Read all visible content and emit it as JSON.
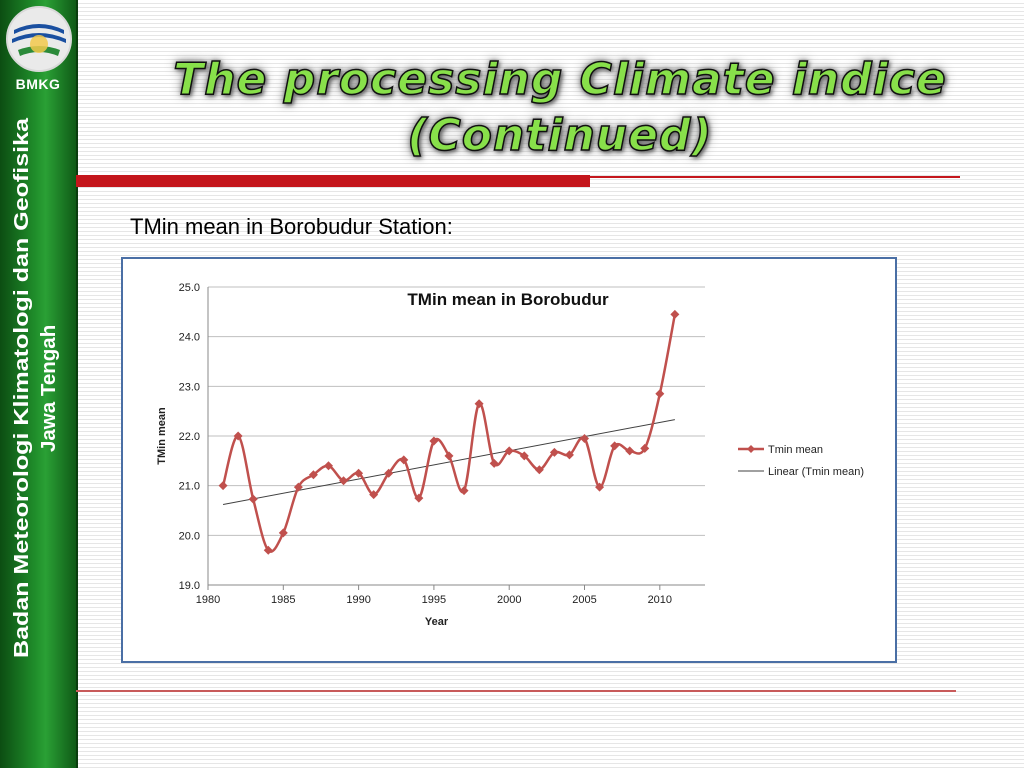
{
  "sidebar": {
    "brand": "BMKG",
    "org_line1": "Badan Meteorologi Klimatologi dan Geofisika",
    "org_line2": "Jawa Tengah",
    "logo_icon": "bmkg-globe-logo-icon"
  },
  "slide": {
    "title_line1": "The processing Climate indice",
    "title_line2": "(Continued)",
    "subtitle": "TMin mean in Borobudur Station:"
  },
  "colors": {
    "title_fill": "#88e04a",
    "accent_red": "#c4161c",
    "sidebar_green": "#1f8c2a",
    "series": "#c0504d",
    "trend": "#404040"
  },
  "chart_data": {
    "type": "line",
    "title": "TMin mean in Borobudur",
    "xlabel": "Year",
    "ylabel": "TMin mean",
    "xlim": [
      1980,
      2013
    ],
    "ylim": [
      19.0,
      25.0
    ],
    "xticks": [
      "1980",
      "1985",
      "1990",
      "1995",
      "2000",
      "2005",
      "2010"
    ],
    "yticks": [
      "19.0",
      "20.0",
      "21.0",
      "22.0",
      "23.0",
      "24.0",
      "25.0"
    ],
    "grid": "horizontal",
    "legend_position": "right",
    "series": [
      {
        "name": "Tmin mean",
        "x": [
          1981,
          1982,
          1983,
          1984,
          1985,
          1986,
          1987,
          1988,
          1989,
          1990,
          1991,
          1992,
          1993,
          1994,
          1995,
          1996,
          1997,
          1998,
          1999,
          2000,
          2001,
          2002,
          2003,
          2004,
          2005,
          2006,
          2007,
          2008,
          2009,
          2010,
          2011
        ],
        "values": [
          21.0,
          22.0,
          20.73,
          19.7,
          20.05,
          20.97,
          21.22,
          21.4,
          21.1,
          21.25,
          20.82,
          21.25,
          21.52,
          20.75,
          21.9,
          21.6,
          20.9,
          22.65,
          21.45,
          21.7,
          21.6,
          21.32,
          21.67,
          21.62,
          21.95,
          20.97,
          21.8,
          21.7,
          21.75,
          22.85,
          24.45
        ]
      },
      {
        "name": "Linear (Tmin mean)",
        "x": [
          1981,
          2011
        ],
        "values": [
          20.62,
          22.33
        ]
      }
    ]
  }
}
